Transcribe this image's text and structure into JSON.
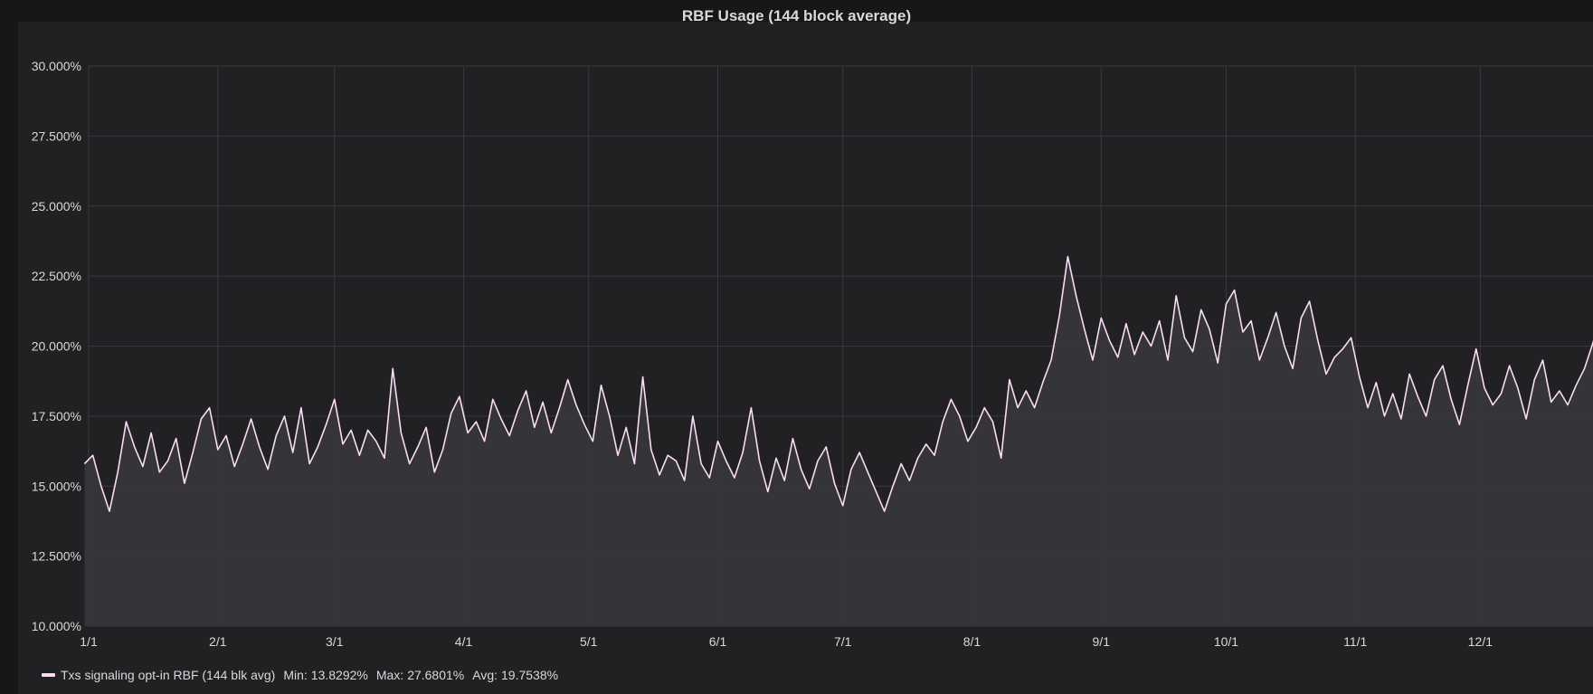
{
  "panel": {
    "title": "RBF Usage (144 block average)"
  },
  "colors": {
    "page_background": "#161719",
    "panel_background": "#212124",
    "series_line": "#fadcf5",
    "series_fill": "#37363a",
    "grid": "#3a3a3e",
    "axis_text": "#d8d9da"
  },
  "chart_data": {
    "type": "area",
    "title": "RBF Usage (144 block average)",
    "xlabel": "",
    "ylabel": "",
    "x_tick_labels": [
      "1/1",
      "2/1",
      "3/1",
      "4/1",
      "5/1",
      "6/1",
      "7/1",
      "8/1",
      "9/1",
      "10/1",
      "11/1",
      "12/1"
    ],
    "y_tick_labels": [
      "10.000%",
      "12.500%",
      "15.000%",
      "17.500%",
      "20.000%",
      "22.500%",
      "25.000%",
      "27.500%",
      "30.000%"
    ],
    "ylim": [
      10,
      30
    ],
    "grid": true,
    "legend_position": "bottom-left",
    "series": [
      {
        "name": "Txs signaling opt-in RBF (144 blk avg)",
        "min": 13.8292,
        "max": 27.6801,
        "avg": 19.7538,
        "x_day_step": 2,
        "values": [
          15.8,
          16.1,
          15.0,
          14.1,
          15.5,
          17.3,
          16.4,
          15.7,
          16.9,
          15.5,
          15.9,
          16.7,
          15.1,
          16.2,
          17.4,
          17.8,
          16.3,
          16.8,
          15.7,
          16.5,
          17.4,
          16.4,
          15.6,
          16.8,
          17.5,
          16.2,
          17.8,
          15.8,
          16.4,
          17.2,
          18.1,
          16.5,
          17.0,
          16.1,
          17.0,
          16.6,
          16.0,
          19.2,
          16.9,
          15.8,
          16.4,
          17.1,
          15.5,
          16.3,
          17.6,
          18.2,
          16.9,
          17.3,
          16.6,
          18.1,
          17.4,
          16.8,
          17.7,
          18.4,
          17.1,
          18.0,
          16.9,
          17.8,
          18.8,
          17.9,
          17.2,
          16.6,
          18.6,
          17.5,
          16.1,
          17.1,
          15.8,
          18.9,
          16.3,
          15.4,
          16.1,
          15.9,
          15.2,
          17.5,
          15.8,
          15.3,
          16.6,
          15.9,
          15.3,
          16.2,
          17.8,
          15.9,
          14.8,
          16.0,
          15.2,
          16.7,
          15.6,
          14.9,
          15.9,
          16.4,
          15.1,
          14.3,
          15.6,
          16.2,
          15.5,
          14.8,
          14.1,
          15.0,
          15.8,
          15.2,
          16.0,
          16.5,
          16.1,
          17.3,
          18.1,
          17.5,
          16.6,
          17.1,
          17.8,
          17.3,
          16.0,
          18.8,
          17.8,
          18.4,
          17.8,
          18.7,
          19.5,
          21.1,
          23.2,
          21.8,
          20.6,
          19.5,
          21.0,
          20.2,
          19.6,
          20.8,
          19.7,
          20.5,
          20.0,
          20.9,
          19.5,
          21.8,
          20.3,
          19.8,
          21.3,
          20.6,
          19.4,
          21.5,
          22.0,
          20.5,
          20.9,
          19.5,
          20.3,
          21.2,
          20.0,
          19.2,
          21.0,
          21.6,
          20.2,
          19.0,
          19.6,
          19.9,
          20.3,
          18.9,
          17.8,
          18.7,
          17.5,
          18.3,
          17.4,
          19.0,
          18.2,
          17.5,
          18.8,
          19.3,
          18.1,
          17.2,
          18.6,
          19.9,
          18.5,
          17.9,
          18.3,
          19.3,
          18.5,
          17.4,
          18.8,
          19.5,
          18.0,
          18.4,
          17.9,
          18.6,
          19.2,
          20.1,
          21.2,
          20.2,
          18.9,
          19.6,
          20.5,
          19.0,
          20.8,
          21.0,
          19.7,
          18.3,
          19.6,
          20.0,
          21.1,
          19.2,
          19.8,
          18.4,
          18.8,
          20.1,
          19.0,
          18.7,
          19.4,
          20.1,
          18.6,
          19.5,
          20.3,
          21.5,
          20.1,
          21.0,
          20.4,
          20.8,
          21.6,
          20.2,
          20.7,
          21.9,
          21.0,
          20.3,
          21.8,
          22.6,
          20.9,
          21.5,
          20.4,
          22.9,
          21.2,
          20.6,
          21.3,
          20.7,
          22.0,
          21.2,
          20.5,
          21.8,
          22.4,
          21.0,
          20.3,
          21.6,
          22.2,
          20.9,
          21.5,
          20.8,
          21.9,
          23.1,
          22.0,
          21.2,
          20.4,
          21.0,
          20.6,
          21.4,
          22.0,
          21.2,
          20.5,
          22.4,
          21.9,
          21.0,
          23.3,
          22.2,
          21.5,
          20.9,
          22.8,
          21.6,
          21.1,
          22.4,
          23.0,
          21.4,
          22.3,
          21.5,
          22.8,
          21.9,
          21.2,
          22.6,
          21.8,
          22.3,
          21.6,
          22.9,
          22.1,
          21.5,
          23.0,
          24.6,
          22.2,
          22.0,
          23.4,
          22.5,
          21.8,
          24.0,
          22.9,
          22.2,
          23.6,
          22.8,
          23.9,
          22.6,
          23.9,
          23.0,
          24.6,
          22.8,
          22.3,
          23.8,
          24.3,
          25.4,
          24.1,
          24.8,
          23.0,
          25.6,
          24.2,
          25.0,
          24.4,
          24.8,
          25.1,
          23.2,
          25.8,
          24.9,
          25.2,
          23.8,
          26.9,
          25.1,
          24.7,
          25.5,
          24.1,
          25.9,
          26.3,
          25.1,
          24.9,
          25.8,
          22.6
        ]
      }
    ]
  },
  "legend": {
    "series_name": "Txs signaling opt-in RBF (144 blk avg)",
    "min_label": "Min:",
    "min_value": "13.8292%",
    "max_label": "Max:",
    "max_value": "27.6801%",
    "avg_label": "Avg:",
    "avg_value": "19.7538%"
  }
}
